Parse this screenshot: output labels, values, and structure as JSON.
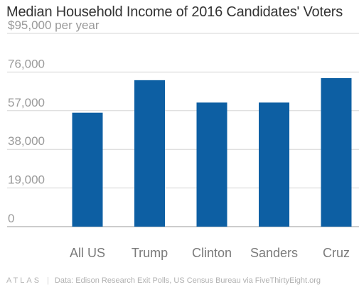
{
  "title": "Median Household Income of 2016 Candidates' Voters",
  "footer": {
    "logo": "ATLAS",
    "source": "Data: Edison Research Exit Polls, US Census Bureau via FiveThirtyEight.org"
  },
  "colors": {
    "bar": "#0d5fa3",
    "grid": "#d6d6d6",
    "axis": "#999999"
  },
  "chart_data": {
    "type": "bar",
    "title": "Median Household Income of 2016 Candidates' Voters",
    "categories": [
      "All US",
      "Trump",
      "Clinton",
      "Sanders",
      "Cruz"
    ],
    "values": [
      56000,
      72000,
      61000,
      61000,
      73000
    ],
    "ylim": [
      0,
      95000
    ],
    "yticks": [
      0,
      19000,
      38000,
      57000,
      76000,
      95000
    ],
    "ytick_labels": [
      "0",
      "19,000",
      "38,000",
      "57,000",
      "76,000",
      "$95,000 per year"
    ],
    "xlabel": "",
    "ylabel": "",
    "grid": true
  }
}
